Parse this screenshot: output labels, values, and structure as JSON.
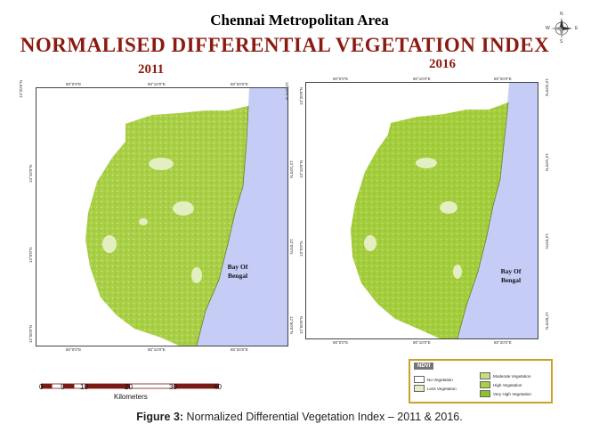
{
  "header": {
    "title": "Chennai Metropolitan Area",
    "subtitle": "NORMALISED DIFFERENTIAL VEGETATION INDEX"
  },
  "compass": {
    "n": "N",
    "s": "S",
    "e": "E",
    "w": "W"
  },
  "maps": [
    {
      "year": "2011",
      "top_labels": [
        "80°0'0\"E",
        "80°10'0\"E",
        "80°20'0\"E"
      ],
      "bottom_labels": [
        "80°0'0\"E",
        "80°10'0\"E",
        "80°20'0\"E"
      ],
      "left_labels": [
        "13°20'0\"N",
        "13°10'0\"N",
        "13°0'0\"N",
        "12°50'0\"N"
      ],
      "right_labels": [
        "13°20'0\"N",
        "13°10'0\"N",
        "13°0'0\"N",
        "12°50'0\"N"
      ],
      "water_label": "Bay Of\nBengal"
    },
    {
      "year": "2016",
      "top_labels": [
        "80°0'0\"E",
        "80°10'0\"E",
        "80°20'0\"E"
      ],
      "bottom_labels": [
        "80°0'0\"E",
        "80°10'0\"E",
        "80°20'0\"E"
      ],
      "left_labels": [
        "13°20'0\"N",
        "13°10'0\"N",
        "13°0'0\"N",
        "12°50'0\"N"
      ],
      "right_labels": [
        "13°20'0\"N",
        "13°10'0\"N",
        "13°0'0\"N",
        "12°50'0\"N"
      ],
      "water_label": "Bay Of\nBengal"
    }
  ],
  "scalebar": {
    "ticks": [
      "0",
      "5",
      "10",
      "20",
      "30",
      "40"
    ],
    "unit": "Kilometers"
  },
  "legend": {
    "title": "NDVI",
    "classes": [
      {
        "label": "No Vegetation",
        "color": "#ffffff"
      },
      {
        "label": "Less Vegetation",
        "color": "#e3efc0"
      },
      {
        "label": "Moderate Vegetation",
        "color": "#c4e07a"
      },
      {
        "label": "High Vegetation",
        "color": "#a8d04a"
      },
      {
        "label": "Very High Vegetation",
        "color": "#8fc02a"
      }
    ]
  },
  "caption": {
    "bold": "Figure 3:",
    "text": " Normalized Differential Vegetation Index – 2011 & 2016."
  },
  "colors": {
    "sea": "#c5cdf6",
    "land_2011": "#a8cf45",
    "land_2016": "#a3cd3c",
    "title_red": "#8b1a10",
    "scale_red": "#7a1a14"
  }
}
